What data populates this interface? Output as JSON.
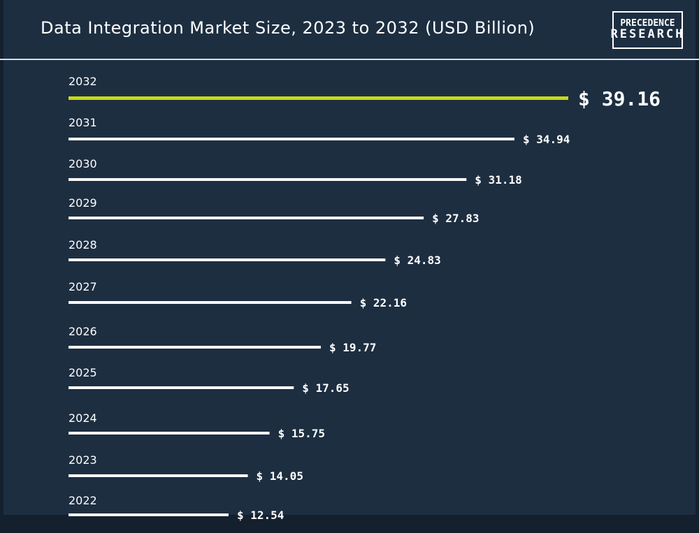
{
  "title": "Data Integration Market Size, 2023 to 2032 (USD Billion)",
  "logo": {
    "line1": "PRECEDENCE",
    "line2": "RESEARCH"
  },
  "colors": {
    "background": "#1d2e41",
    "bar": "#ffffff",
    "highlight": "#c6d91a"
  },
  "chart_data": {
    "type": "bar",
    "orientation": "horizontal",
    "title": "Data Integration Market Size, 2023 to 2032 (USD Billion)",
    "categories": [
      "2032",
      "2031",
      "2030",
      "2029",
      "2028",
      "2027",
      "2026",
      "2025",
      "2024",
      "2023",
      "2022"
    ],
    "values": [
      39.16,
      34.94,
      31.18,
      27.83,
      24.83,
      22.16,
      19.77,
      17.65,
      15.75,
      14.05,
      12.54
    ],
    "value_labels": [
      "$ 39.16",
      "$ 34.94",
      "$ 31.18",
      "$ 27.83",
      "$ 24.83",
      "$ 22.16",
      "$ 19.77",
      "$ 17.65",
      "$ 15.75",
      "$ 14.05",
      "$ 12.54"
    ],
    "highlight_category": "2032",
    "xlabel": "",
    "ylabel": "",
    "grid": false,
    "legend": "none"
  }
}
